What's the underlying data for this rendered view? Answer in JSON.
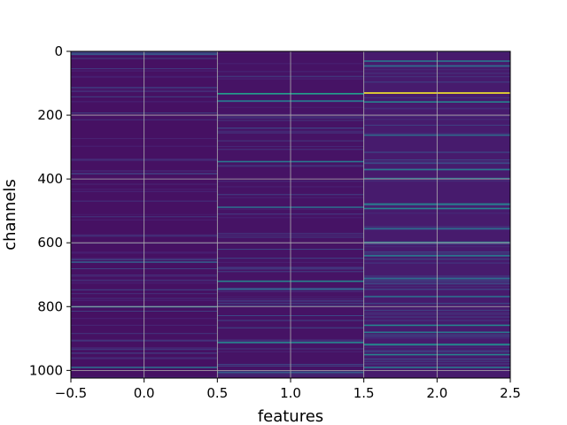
{
  "chart_data": {
    "type": "heatmap",
    "title": "",
    "xlabel": "features",
    "ylabel": "channels",
    "xlim": [
      -0.5,
      2.5
    ],
    "ylim": [
      1024,
      0
    ],
    "y_inverted": true,
    "grid": true,
    "colormap": "viridis",
    "n_columns": 3,
    "n_rows": 1024,
    "x_ticks": [
      -0.5,
      0.0,
      0.5,
      1.0,
      1.5,
      2.0,
      2.5
    ],
    "x_tick_labels": [
      "−0.5",
      "0.0",
      "0.5",
      "1.0",
      "1.5",
      "2.0",
      "2.5"
    ],
    "y_ticks": [
      0,
      200,
      400,
      600,
      800,
      1000
    ],
    "y_tick_labels": [
      "0",
      "200",
      "400",
      "600",
      "800",
      "1000"
    ],
    "columns": [
      {
        "feature": 0,
        "base_level": 0.06,
        "bright_rows": [
          {
            "channel": 8,
            "value": 0.3
          },
          {
            "channel": 660,
            "value": 0.3
          },
          {
            "channel": 800,
            "value": 0.4
          },
          {
            "channel": 990,
            "value": 0.35
          }
        ]
      },
      {
        "feature": 1,
        "base_level": 0.07,
        "bright_rows": [
          {
            "channel": 132,
            "value": 0.55
          },
          {
            "channel": 155,
            "value": 0.4
          },
          {
            "channel": 345,
            "value": 0.4
          },
          {
            "channel": 488,
            "value": 0.35
          },
          {
            "channel": 720,
            "value": 0.45
          },
          {
            "channel": 745,
            "value": 0.3
          },
          {
            "channel": 912,
            "value": 0.45
          },
          {
            "channel": 1005,
            "value": 0.3
          }
        ]
      },
      {
        "feature": 2,
        "base_level": 0.1,
        "bright_rows": [
          {
            "channel": 30,
            "value": 0.4
          },
          {
            "channel": 45,
            "value": 0.35
          },
          {
            "channel": 130,
            "value": 1.0
          },
          {
            "channel": 158,
            "value": 0.45
          },
          {
            "channel": 262,
            "value": 0.35
          },
          {
            "channel": 370,
            "value": 0.4
          },
          {
            "channel": 398,
            "value": 0.4
          },
          {
            "channel": 478,
            "value": 0.45
          },
          {
            "channel": 492,
            "value": 0.45
          },
          {
            "channel": 555,
            "value": 0.35
          },
          {
            "channel": 598,
            "value": 0.45
          },
          {
            "channel": 640,
            "value": 0.4
          },
          {
            "channel": 712,
            "value": 0.35
          },
          {
            "channel": 768,
            "value": 0.35
          },
          {
            "channel": 858,
            "value": 0.45
          },
          {
            "channel": 880,
            "value": 0.4
          },
          {
            "channel": 918,
            "value": 0.5
          },
          {
            "channel": 950,
            "value": 0.45
          },
          {
            "channel": 990,
            "value": 0.4
          }
        ]
      }
    ]
  }
}
